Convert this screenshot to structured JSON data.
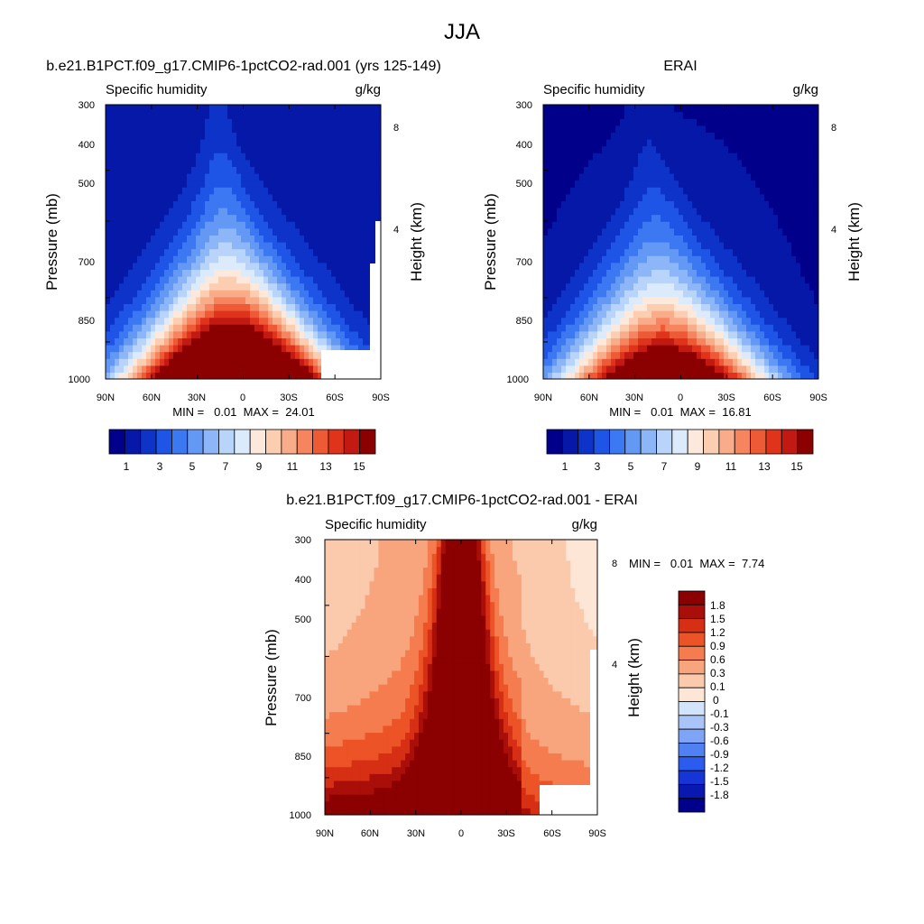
{
  "figure_title": "JJA",
  "colors": {
    "abs_scale": [
      "#00008b",
      "#0518a8",
      "#0d33c8",
      "#1e55e6",
      "#3c78f2",
      "#6498f5",
      "#8cb6f7",
      "#b8d4fa",
      "#dcebfc",
      "#fce9dc",
      "#fbcdb1",
      "#f9ac8a",
      "#f5845f",
      "#ee5a36",
      "#e0331c",
      "#c21a12",
      "#8b0000"
    ],
    "diff_scale": [
      "#00008b",
      "#0818b0",
      "#1535d6",
      "#2b5bef",
      "#4f80f4",
      "#7ea4f6",
      "#a9c5f8",
      "#d2e4fb",
      "#fde6d6",
      "#fbc9ac",
      "#f8a47c",
      "#f47c4e",
      "#ec5327",
      "#d62f14",
      "#a90f08",
      "#8b0000"
    ],
    "missing": "#ffffff"
  },
  "chart_data": [
    {
      "type": "heatmap",
      "title": "b.e21.B1PCT.f09_g17.CMIP6-1pctCO2-rad.001 (yrs 125-149)",
      "left_label": "Specific humidity",
      "right_label": "g/kg",
      "xlabel": "",
      "ylabel": "Pressure (mb)",
      "ylabel_right": "Height (km)",
      "x_ticks": [
        "90N",
        "60N",
        "30N",
        "0",
        "30S",
        "60S",
        "90S"
      ],
      "y_ticks": [
        "300",
        "400",
        "500",
        "700",
        "850",
        "1000"
      ],
      "y_ticks_right": [
        "8",
        "4"
      ],
      "ylim": [
        1000,
        300
      ],
      "y_scale": "log",
      "min": "0.01",
      "max": "24.01",
      "minmax_text": "MIN =   0.01  MAX =  24.01",
      "colorbar_labels": [
        "1",
        "3",
        "5",
        "7",
        "9",
        "11",
        "13",
        "15"
      ],
      "field": {
        "peak": 24.01,
        "peak_lat": 5,
        "bg": 1.0
      }
    },
    {
      "type": "heatmap",
      "title": "ERAI",
      "left_label": "Specific humidity",
      "right_label": "g/kg",
      "xlabel": "",
      "ylabel": "Pressure (mb)",
      "ylabel_right": "Height (km)",
      "x_ticks": [
        "90N",
        "60N",
        "30N",
        "0",
        "30S",
        "60S",
        "90S"
      ],
      "y_ticks": [
        "300",
        "400",
        "500",
        "700",
        "850",
        "1000"
      ],
      "y_ticks_right": [
        "8",
        "4"
      ],
      "ylim": [
        1000,
        300
      ],
      "y_scale": "log",
      "min": "0.01",
      "max": "16.81",
      "minmax_text": "MIN =   0.01  MAX =  16.81",
      "colorbar_labels": [
        "1",
        "3",
        "5",
        "7",
        "9",
        "11",
        "13",
        "15"
      ],
      "field": {
        "peak": 16.81,
        "peak_lat": 10,
        "bg": 0.6
      }
    },
    {
      "type": "heatmap",
      "title": "b.e21.B1PCT.f09_g17.CMIP6-1pctCO2-rad.001 - ERAI",
      "left_label": "Specific humidity",
      "right_label": "g/kg",
      "xlabel": "",
      "ylabel": "Pressure (mb)",
      "ylabel_right": "Height (km)",
      "x_ticks": [
        "90N",
        "60N",
        "30N",
        "0",
        "30S",
        "60S",
        "90S"
      ],
      "y_ticks": [
        "300",
        "400",
        "500",
        "700",
        "850",
        "1000"
      ],
      "y_ticks_right": [
        "8",
        "4"
      ],
      "ylim": [
        1000,
        300
      ],
      "y_scale": "log",
      "min": "0.01",
      "max": "7.74",
      "minmax_text": "MIN =   0.01  MAX =  7.74",
      "colorbar_labels": [
        "1.8",
        "1.5",
        "1.2",
        "0.9",
        "0.6",
        "0.3",
        "0.1",
        "0",
        "-0.1",
        "-0.3",
        "-0.6",
        "-0.9",
        "-1.2",
        "-1.5",
        "-1.8"
      ],
      "field": {
        "peak": 7.74,
        "peak_lat": 0,
        "bg": 0.2
      }
    }
  ]
}
